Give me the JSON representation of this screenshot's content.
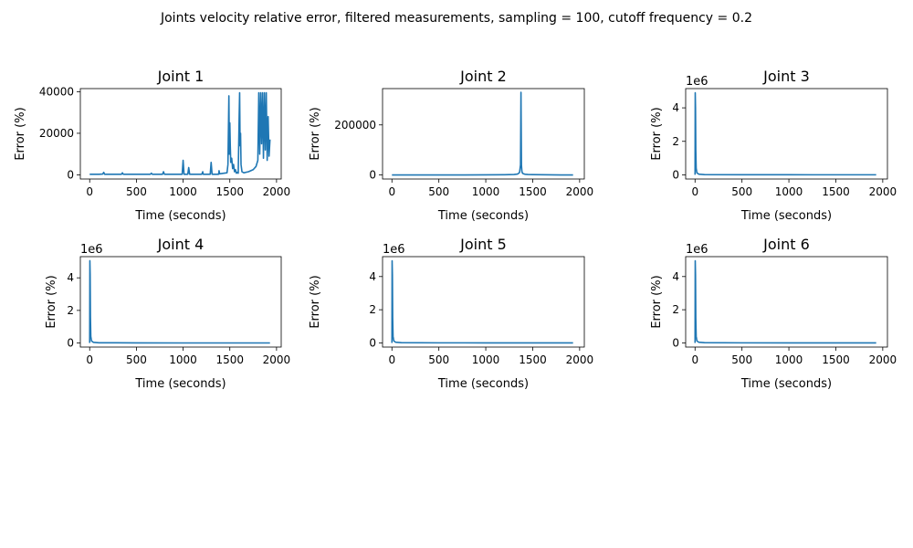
{
  "suptitle": "Joints velocity relative error, filtered measurements, sampling = 100, cutoff frequency = 0.2",
  "colors": {
    "line": "#1f77b4",
    "axis": "#000000",
    "background": "#ffffff"
  },
  "chart_data": [
    {
      "type": "line",
      "title": "Joint 1",
      "xlabel": "Time (seconds)",
      "ylabel": "Error (%)",
      "xlim": [
        -100,
        2050
      ],
      "ylim": [
        -2000,
        41500
      ],
      "xticks": [
        0,
        500,
        1000,
        1500,
        2000
      ],
      "yticks": [
        0,
        20000,
        40000
      ],
      "ytick_labels": [
        "0",
        "20000",
        "40000"
      ],
      "offset_text": "",
      "grid": false,
      "series": [
        {
          "x": [
            0,
            100,
            140,
            150,
            160,
            300,
            340,
            350,
            360,
            600,
            650,
            660,
            670,
            780,
            790,
            800,
            990,
            1000,
            1010,
            1050,
            1060,
            1070,
            1200,
            1210,
            1215,
            1290,
            1300,
            1310,
            1380,
            1385,
            1390,
            1470,
            1480,
            1490,
            1495,
            1500,
            1505,
            1510,
            1520,
            1530,
            1540,
            1550,
            1560,
            1570,
            1580,
            1590,
            1600,
            1605,
            1610,
            1615,
            1620,
            1630,
            1650,
            1700,
            1750,
            1780,
            1800,
            1810,
            1820,
            1830,
            1840,
            1850,
            1860,
            1870,
            1880,
            1890,
            1900,
            1910,
            1920,
            1930
          ],
          "y": [
            300,
            300,
            400,
            1200,
            300,
            300,
            300,
            1000,
            300,
            300,
            300,
            800,
            300,
            300,
            1500,
            300,
            300,
            7000,
            300,
            300,
            3500,
            300,
            300,
            1500,
            300,
            300,
            6000,
            300,
            300,
            2000,
            500,
            1000,
            5000,
            38000,
            10000,
            25000,
            14000,
            6000,
            8000,
            3000,
            5000,
            1500,
            2500,
            800,
            1200,
            800,
            28000,
            39500,
            14000,
            20000,
            5000,
            1500,
            1000,
            1500,
            2500,
            4000,
            7000,
            39500,
            10000,
            39500,
            15000,
            39500,
            8000,
            39500,
            12000,
            39500,
            7000,
            28000,
            9000,
            17000
          ]
        }
      ]
    },
    {
      "type": "line",
      "title": "Joint 2",
      "xlabel": "Time (seconds)",
      "ylabel": "Error (%)",
      "xlim": [
        -100,
        2050
      ],
      "ylim": [
        -16000,
        345000
      ],
      "xticks": [
        0,
        500,
        1000,
        1500,
        2000
      ],
      "yticks": [
        0,
        200000
      ],
      "ytick_labels": [
        "0",
        "200000"
      ],
      "offset_text": "",
      "grid": false,
      "series": [
        {
          "x": [
            0,
            500,
            1000,
            1200,
            1300,
            1340,
            1360,
            1370,
            1375,
            1380,
            1385,
            1390,
            1400,
            1420,
            1450,
            1500,
            1600,
            1700,
            1800,
            1930
          ],
          "y": [
            0,
            0,
            500,
            1000,
            2000,
            4000,
            10000,
            40000,
            330000,
            40000,
            15000,
            8000,
            5000,
            3000,
            2000,
            1500,
            1000,
            500,
            300,
            200
          ]
        }
      ]
    },
    {
      "type": "line",
      "title": "Joint 3",
      "xlabel": "Time (seconds)",
      "ylabel": "Error (%)",
      "xlim": [
        -100,
        2050
      ],
      "ylim": [
        -250000,
        5150000
      ],
      "xticks": [
        0,
        500,
        1000,
        1500,
        2000
      ],
      "yticks": [
        0,
        2000000,
        4000000
      ],
      "ytick_labels": [
        "0",
        "2",
        "4"
      ],
      "offset_text": "1e6",
      "grid": false,
      "series": [
        {
          "x": [
            0,
            2,
            5,
            8,
            12,
            20,
            40,
            100,
            500,
            1000,
            1500,
            1930
          ],
          "y": [
            0,
            4900000,
            4000000,
            1500000,
            400000,
            120000,
            40000,
            15000,
            5000,
            3000,
            2000,
            2000
          ]
        }
      ]
    },
    {
      "type": "line",
      "title": "Joint 4",
      "xlabel": "Time (seconds)",
      "ylabel": "Error (%)",
      "xlim": [
        -100,
        2050
      ],
      "ylim": [
        -250000,
        5300000
      ],
      "xticks": [
        0,
        500,
        1000,
        1500,
        2000
      ],
      "yticks": [
        0,
        2000000,
        4000000
      ],
      "ytick_labels": [
        "0",
        "2",
        "4"
      ],
      "offset_text": "1e6",
      "grid": false,
      "series": [
        {
          "x": [
            0,
            2,
            5,
            8,
            12,
            20,
            40,
            100,
            500,
            1000,
            1500,
            1930
          ],
          "y": [
            0,
            5050000,
            4200000,
            1600000,
            400000,
            120000,
            40000,
            15000,
            5000,
            3000,
            2000,
            2000
          ]
        }
      ]
    },
    {
      "type": "line",
      "title": "Joint 5",
      "xlabel": "Time (seconds)",
      "ylabel": "Error (%)",
      "xlim": [
        -100,
        2050
      ],
      "ylim": [
        -250000,
        5200000
      ],
      "xticks": [
        0,
        500,
        1000,
        1500,
        2000
      ],
      "yticks": [
        0,
        2000000,
        4000000
      ],
      "ytick_labels": [
        "0",
        "2",
        "4"
      ],
      "offset_text": "1e6",
      "grid": false,
      "series": [
        {
          "x": [
            0,
            2,
            5,
            8,
            12,
            20,
            40,
            100,
            500,
            1000,
            1500,
            1930
          ],
          "y": [
            0,
            4950000,
            4100000,
            1500000,
            400000,
            120000,
            40000,
            15000,
            5000,
            3000,
            2000,
            2000
          ]
        }
      ]
    },
    {
      "type": "line",
      "title": "Joint 6",
      "xlabel": "Time (seconds)",
      "ylabel": "Error (%)",
      "xlim": [
        -100,
        2050
      ],
      "ylim": [
        -250000,
        5200000
      ],
      "xticks": [
        0,
        500,
        1000,
        1500,
        2000
      ],
      "yticks": [
        0,
        2000000,
        4000000
      ],
      "ytick_labels": [
        "0",
        "2",
        "4"
      ],
      "offset_text": "1e6",
      "grid": false,
      "series": [
        {
          "x": [
            0,
            2,
            5,
            8,
            12,
            20,
            40,
            100,
            500,
            1000,
            1500,
            1930
          ],
          "y": [
            0,
            4950000,
            4100000,
            1500000,
            400000,
            120000,
            40000,
            15000,
            5000,
            3000,
            2000,
            2000
          ]
        }
      ]
    }
  ]
}
